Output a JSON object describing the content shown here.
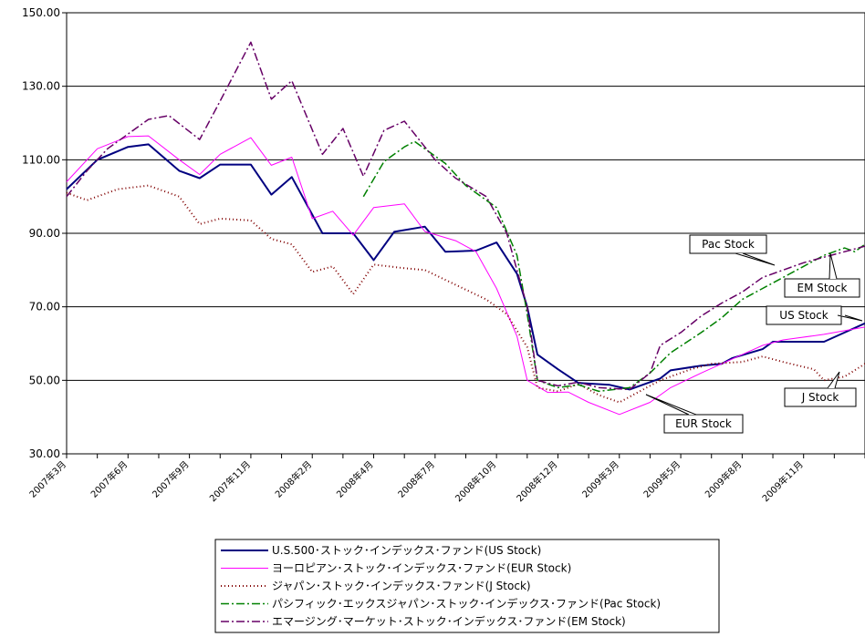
{
  "chart_data": {
    "type": "line",
    "ylim": [
      30,
      150
    ],
    "y_ticks": [
      "150.00",
      "130.00",
      "110.00",
      "90.00",
      "70.00",
      "50.00",
      "30.00"
    ],
    "y_tick_values": [
      150,
      130,
      110,
      90,
      70,
      50,
      30
    ],
    "grid": "horizontal",
    "legend_position": "bottom",
    "x_tick_labels": [
      "2007年3月",
      "2007年6月",
      "2007年9月",
      "2007年11月",
      "2008年2月",
      "2008年4月",
      "2008年7月",
      "2008年10月",
      "2008年12月",
      "2009年3月",
      "2009年5月",
      "2009年8月",
      "2009年11月"
    ],
    "x_tick_positions": [
      0,
      6,
      12,
      18,
      24,
      30,
      36,
      42,
      48,
      54,
      60,
      66,
      72
    ],
    "x_range": [
      0,
      78
    ],
    "series": [
      {
        "name": "U.S.500･ストック･インデックス･ファンド(US Stock)",
        "label": "US Stock",
        "color": "#000080",
        "dash": "",
        "width": 2,
        "points": [
          [
            0,
            102
          ],
          [
            3,
            110
          ],
          [
            6,
            113.5
          ],
          [
            8,
            114.2
          ],
          [
            11,
            107
          ],
          [
            13,
            105
          ],
          [
            15,
            108.7
          ],
          [
            18,
            108.7
          ],
          [
            20,
            100.5
          ],
          [
            22,
            105.3
          ],
          [
            25,
            90
          ],
          [
            28,
            90
          ],
          [
            30,
            82.7
          ],
          [
            32,
            90.4
          ],
          [
            35,
            91.8
          ],
          [
            37,
            85
          ],
          [
            40,
            85.3
          ],
          [
            42,
            87.5
          ],
          [
            44,
            79
          ],
          [
            45,
            70
          ],
          [
            46,
            57
          ],
          [
            48,
            53
          ],
          [
            50,
            49.3
          ],
          [
            53,
            48.8
          ],
          [
            55,
            47.5
          ],
          [
            58,
            50.5
          ],
          [
            59,
            52.7
          ],
          [
            62,
            54
          ],
          [
            64,
            54.5
          ],
          [
            65,
            56
          ],
          [
            68,
            58.5
          ],
          [
            69,
            60.5
          ],
          [
            74,
            60.5
          ],
          [
            78,
            65.5
          ]
        ]
      },
      {
        "name": "ヨーロピアン･ストック･インデックス･ファンド(EUR Stock)",
        "label": "EUR Stock",
        "color": "#ff00ff",
        "dash": "",
        "width": 1,
        "points": [
          [
            0,
            104
          ],
          [
            3,
            113
          ],
          [
            6,
            116.3
          ],
          [
            8,
            116.5
          ],
          [
            11,
            110
          ],
          [
            13,
            106
          ],
          [
            15,
            111.5
          ],
          [
            18,
            116
          ],
          [
            20,
            108.5
          ],
          [
            22,
            110.7
          ],
          [
            24,
            94
          ],
          [
            26,
            96
          ],
          [
            28,
            89.5
          ],
          [
            30,
            97
          ],
          [
            33,
            98
          ],
          [
            35,
            90.5
          ],
          [
            38,
            88
          ],
          [
            40,
            85
          ],
          [
            42,
            75
          ],
          [
            44,
            62
          ],
          [
            45,
            50
          ],
          [
            47,
            46.7
          ],
          [
            49,
            46.8
          ],
          [
            51,
            44
          ],
          [
            54,
            40.7
          ],
          [
            57,
            44
          ],
          [
            59,
            48
          ],
          [
            62,
            52
          ],
          [
            64,
            54.5
          ],
          [
            66,
            57
          ],
          [
            68,
            59.5
          ],
          [
            70,
            61
          ],
          [
            74,
            62.5
          ],
          [
            78,
            64.5
          ]
        ]
      },
      {
        "name": "ジャパン･ストック･インデックス･ファンド(J Stock)",
        "label": "J Stock",
        "color": "#800000",
        "dash": "1,3",
        "width": 2,
        "points": [
          [
            0,
            101
          ],
          [
            2,
            99
          ],
          [
            5,
            102
          ],
          [
            8,
            103
          ],
          [
            11,
            100
          ],
          [
            13,
            92.5
          ],
          [
            15,
            94
          ],
          [
            18,
            93.5
          ],
          [
            20,
            88.5
          ],
          [
            22,
            87
          ],
          [
            24,
            79.5
          ],
          [
            26,
            81
          ],
          [
            28,
            73.5
          ],
          [
            30,
            81.5
          ],
          [
            33,
            80.5
          ],
          [
            35,
            80
          ],
          [
            38,
            76
          ],
          [
            41,
            72
          ],
          [
            43,
            68
          ],
          [
            45,
            59
          ],
          [
            46,
            48
          ],
          [
            48,
            47
          ],
          [
            50,
            49
          ],
          [
            52,
            46
          ],
          [
            54,
            44
          ],
          [
            56,
            47
          ],
          [
            58,
            50
          ],
          [
            61,
            53
          ],
          [
            63,
            54.5
          ],
          [
            66,
            55
          ],
          [
            68,
            56.5
          ],
          [
            70,
            55
          ],
          [
            73,
            53
          ],
          [
            74,
            50
          ],
          [
            76,
            51
          ],
          [
            78,
            54.5
          ]
        ]
      },
      {
        "name": "パシフィック･エックスジャパン･ストック･インデックス･ファンド(Pac Stock)",
        "label": "Pac Stock",
        "color": "#008000",
        "dash": "9,3,2,3",
        "width": 1.5,
        "points": [
          [
            29,
            100
          ],
          [
            31,
            109.5
          ],
          [
            33,
            113.5
          ],
          [
            34,
            115
          ],
          [
            37,
            109
          ],
          [
            39,
            103
          ],
          [
            42,
            97
          ],
          [
            44,
            84
          ],
          [
            45,
            68
          ],
          [
            46,
            50
          ],
          [
            48,
            48
          ],
          [
            50,
            48.8
          ],
          [
            52,
            47
          ],
          [
            55,
            48
          ],
          [
            57,
            52
          ],
          [
            59,
            57.5
          ],
          [
            62,
            63
          ],
          [
            64,
            67
          ],
          [
            66,
            72
          ],
          [
            68,
            75
          ],
          [
            70,
            78
          ],
          [
            72,
            81
          ],
          [
            74,
            84
          ],
          [
            76,
            86
          ],
          [
            77,
            85
          ],
          [
            78,
            87
          ]
        ]
      },
      {
        "name": "エマージング･マーケット･ストック･インデックス･ファンド(EM Stock)",
        "label": "EM Stock",
        "color": "#660066",
        "dash": "9,3,2,3",
        "width": 1.5,
        "points": [
          [
            0,
            100
          ],
          [
            2,
            107
          ],
          [
            4,
            113
          ],
          [
            6,
            117
          ],
          [
            8,
            121
          ],
          [
            10,
            122
          ],
          [
            13,
            115.5
          ],
          [
            15,
            126
          ],
          [
            18,
            142
          ],
          [
            20,
            126.5
          ],
          [
            22,
            131.5
          ],
          [
            25,
            111.5
          ],
          [
            27,
            118.5
          ],
          [
            29,
            105.5
          ],
          [
            31,
            118
          ],
          [
            33,
            120.5
          ],
          [
            36,
            110
          ],
          [
            38,
            105
          ],
          [
            41,
            100
          ],
          [
            43,
            90
          ],
          [
            45,
            70
          ],
          [
            46,
            50
          ],
          [
            48,
            48.5
          ],
          [
            50,
            49.5
          ],
          [
            52,
            48
          ],
          [
            55,
            47.5
          ],
          [
            57,
            52
          ],
          [
            58,
            59.5
          ],
          [
            60,
            63
          ],
          [
            62,
            67.5
          ],
          [
            64,
            71
          ],
          [
            66,
            74
          ],
          [
            68,
            78
          ],
          [
            70,
            80
          ],
          [
            72,
            82
          ],
          [
            74,
            83.5
          ],
          [
            76,
            85
          ],
          [
            78,
            86.5
          ]
        ]
      }
    ]
  }
}
